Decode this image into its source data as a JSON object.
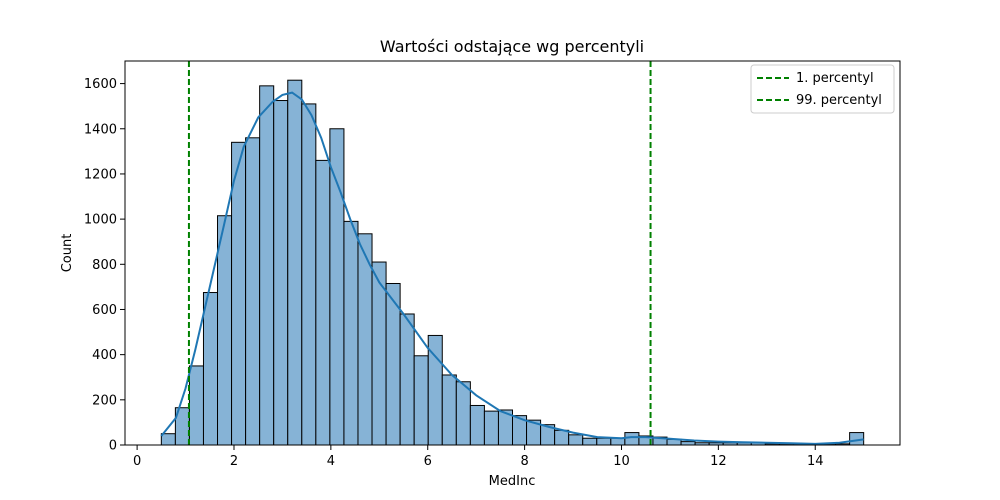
{
  "chart_data": {
    "type": "bar",
    "title": "Wartości odstające wg percentyli",
    "xlabel": "MedInc",
    "ylabel": "Count",
    "xlim": [
      -0.25,
      15.75
    ],
    "ylim": [
      0,
      1700
    ],
    "xticks": [
      0,
      2,
      4,
      6,
      8,
      10,
      12,
      14
    ],
    "yticks": [
      0,
      200,
      400,
      600,
      800,
      1000,
      1200,
      1400,
      1600
    ],
    "grid": false,
    "legend_position": "top-right",
    "bin_start": 0.5,
    "bin_width": 0.29,
    "counts": [
      50,
      165,
      350,
      675,
      1015,
      1340,
      1360,
      1590,
      1525,
      1615,
      1510,
      1260,
      1400,
      990,
      935,
      810,
      715,
      580,
      395,
      485,
      310,
      280,
      175,
      150,
      155,
      130,
      110,
      90,
      65,
      45,
      30,
      30,
      30,
      55,
      40,
      35,
      25,
      15,
      10,
      10,
      10,
      10,
      10,
      5,
      5,
      5,
      5,
      5,
      5,
      55
    ],
    "kde": {
      "x": [
        0.5,
        0.8,
        1.0,
        1.2,
        1.5,
        1.8,
        2.0,
        2.2,
        2.5,
        2.8,
        3.0,
        3.2,
        3.4,
        3.6,
        3.8,
        4.0,
        4.2,
        4.4,
        4.6,
        4.8,
        5.0,
        5.5,
        6.0,
        6.5,
        7.0,
        7.5,
        8.0,
        8.5,
        9.0,
        9.5,
        10.0,
        10.2,
        10.5,
        11.0,
        11.5,
        12.0,
        12.5,
        13.0,
        13.5,
        14.0,
        14.5,
        15.0
      ],
      "y": [
        40,
        120,
        250,
        420,
        700,
        980,
        1170,
        1320,
        1450,
        1520,
        1550,
        1560,
        1530,
        1460,
        1360,
        1230,
        1120,
        1000,
        890,
        800,
        720,
        580,
        430,
        310,
        220,
        150,
        110,
        80,
        55,
        35,
        30,
        35,
        35,
        28,
        20,
        15,
        12,
        10,
        8,
        5,
        10,
        25
      ]
    },
    "percentile_lines": [
      {
        "name": "1. percentyl",
        "x": 1.07,
        "color": "#008000"
      },
      {
        "name": "99. percentyl",
        "x": 10.6,
        "color": "#008000"
      }
    ],
    "colors": {
      "bar_fill": "#86b3d6",
      "bar_edge": "#000000",
      "kde_line": "#1f77b4"
    }
  }
}
